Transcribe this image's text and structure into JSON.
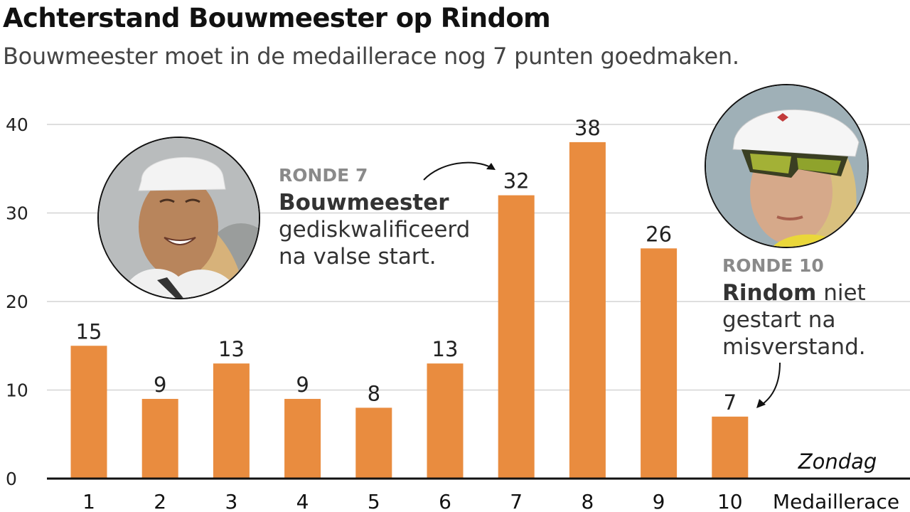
{
  "title": "Achterstand Bouwmeester op Rindom",
  "subtitle": "Bouwmeester moet in de medaillerace nog 7 punten goedmaken.",
  "chart_data": {
    "type": "bar",
    "categories": [
      "1",
      "2",
      "3",
      "4",
      "5",
      "6",
      "7",
      "8",
      "9",
      "10"
    ],
    "values": [
      15,
      9,
      13,
      9,
      8,
      13,
      32,
      38,
      26,
      7
    ],
    "extra_category": "Medaillerace",
    "extra_category_note": "Zondag",
    "yticks": [
      0,
      10,
      20,
      30,
      40
    ],
    "ylim": [
      0,
      40
    ],
    "grid": true,
    "bar_color": "#e98c3f",
    "grid_color": "#d4d4d4",
    "axis_color": "#111111"
  },
  "annotations": {
    "round7": {
      "kicker": "RONDE 7",
      "name": "Bouwmeester",
      "line2": "gediskwalificeerd",
      "line3": "na valse start."
    },
    "round10": {
      "kicker": "RONDE 10",
      "name": "Rindom",
      "name_suffix": " niet",
      "line2": "gestart na",
      "line3": "misverstand."
    }
  },
  "photos": {
    "left": {
      "icon": "sailor-portrait-smiling-icon"
    },
    "right": {
      "icon": "sailor-portrait-sunglasses-icon"
    }
  }
}
